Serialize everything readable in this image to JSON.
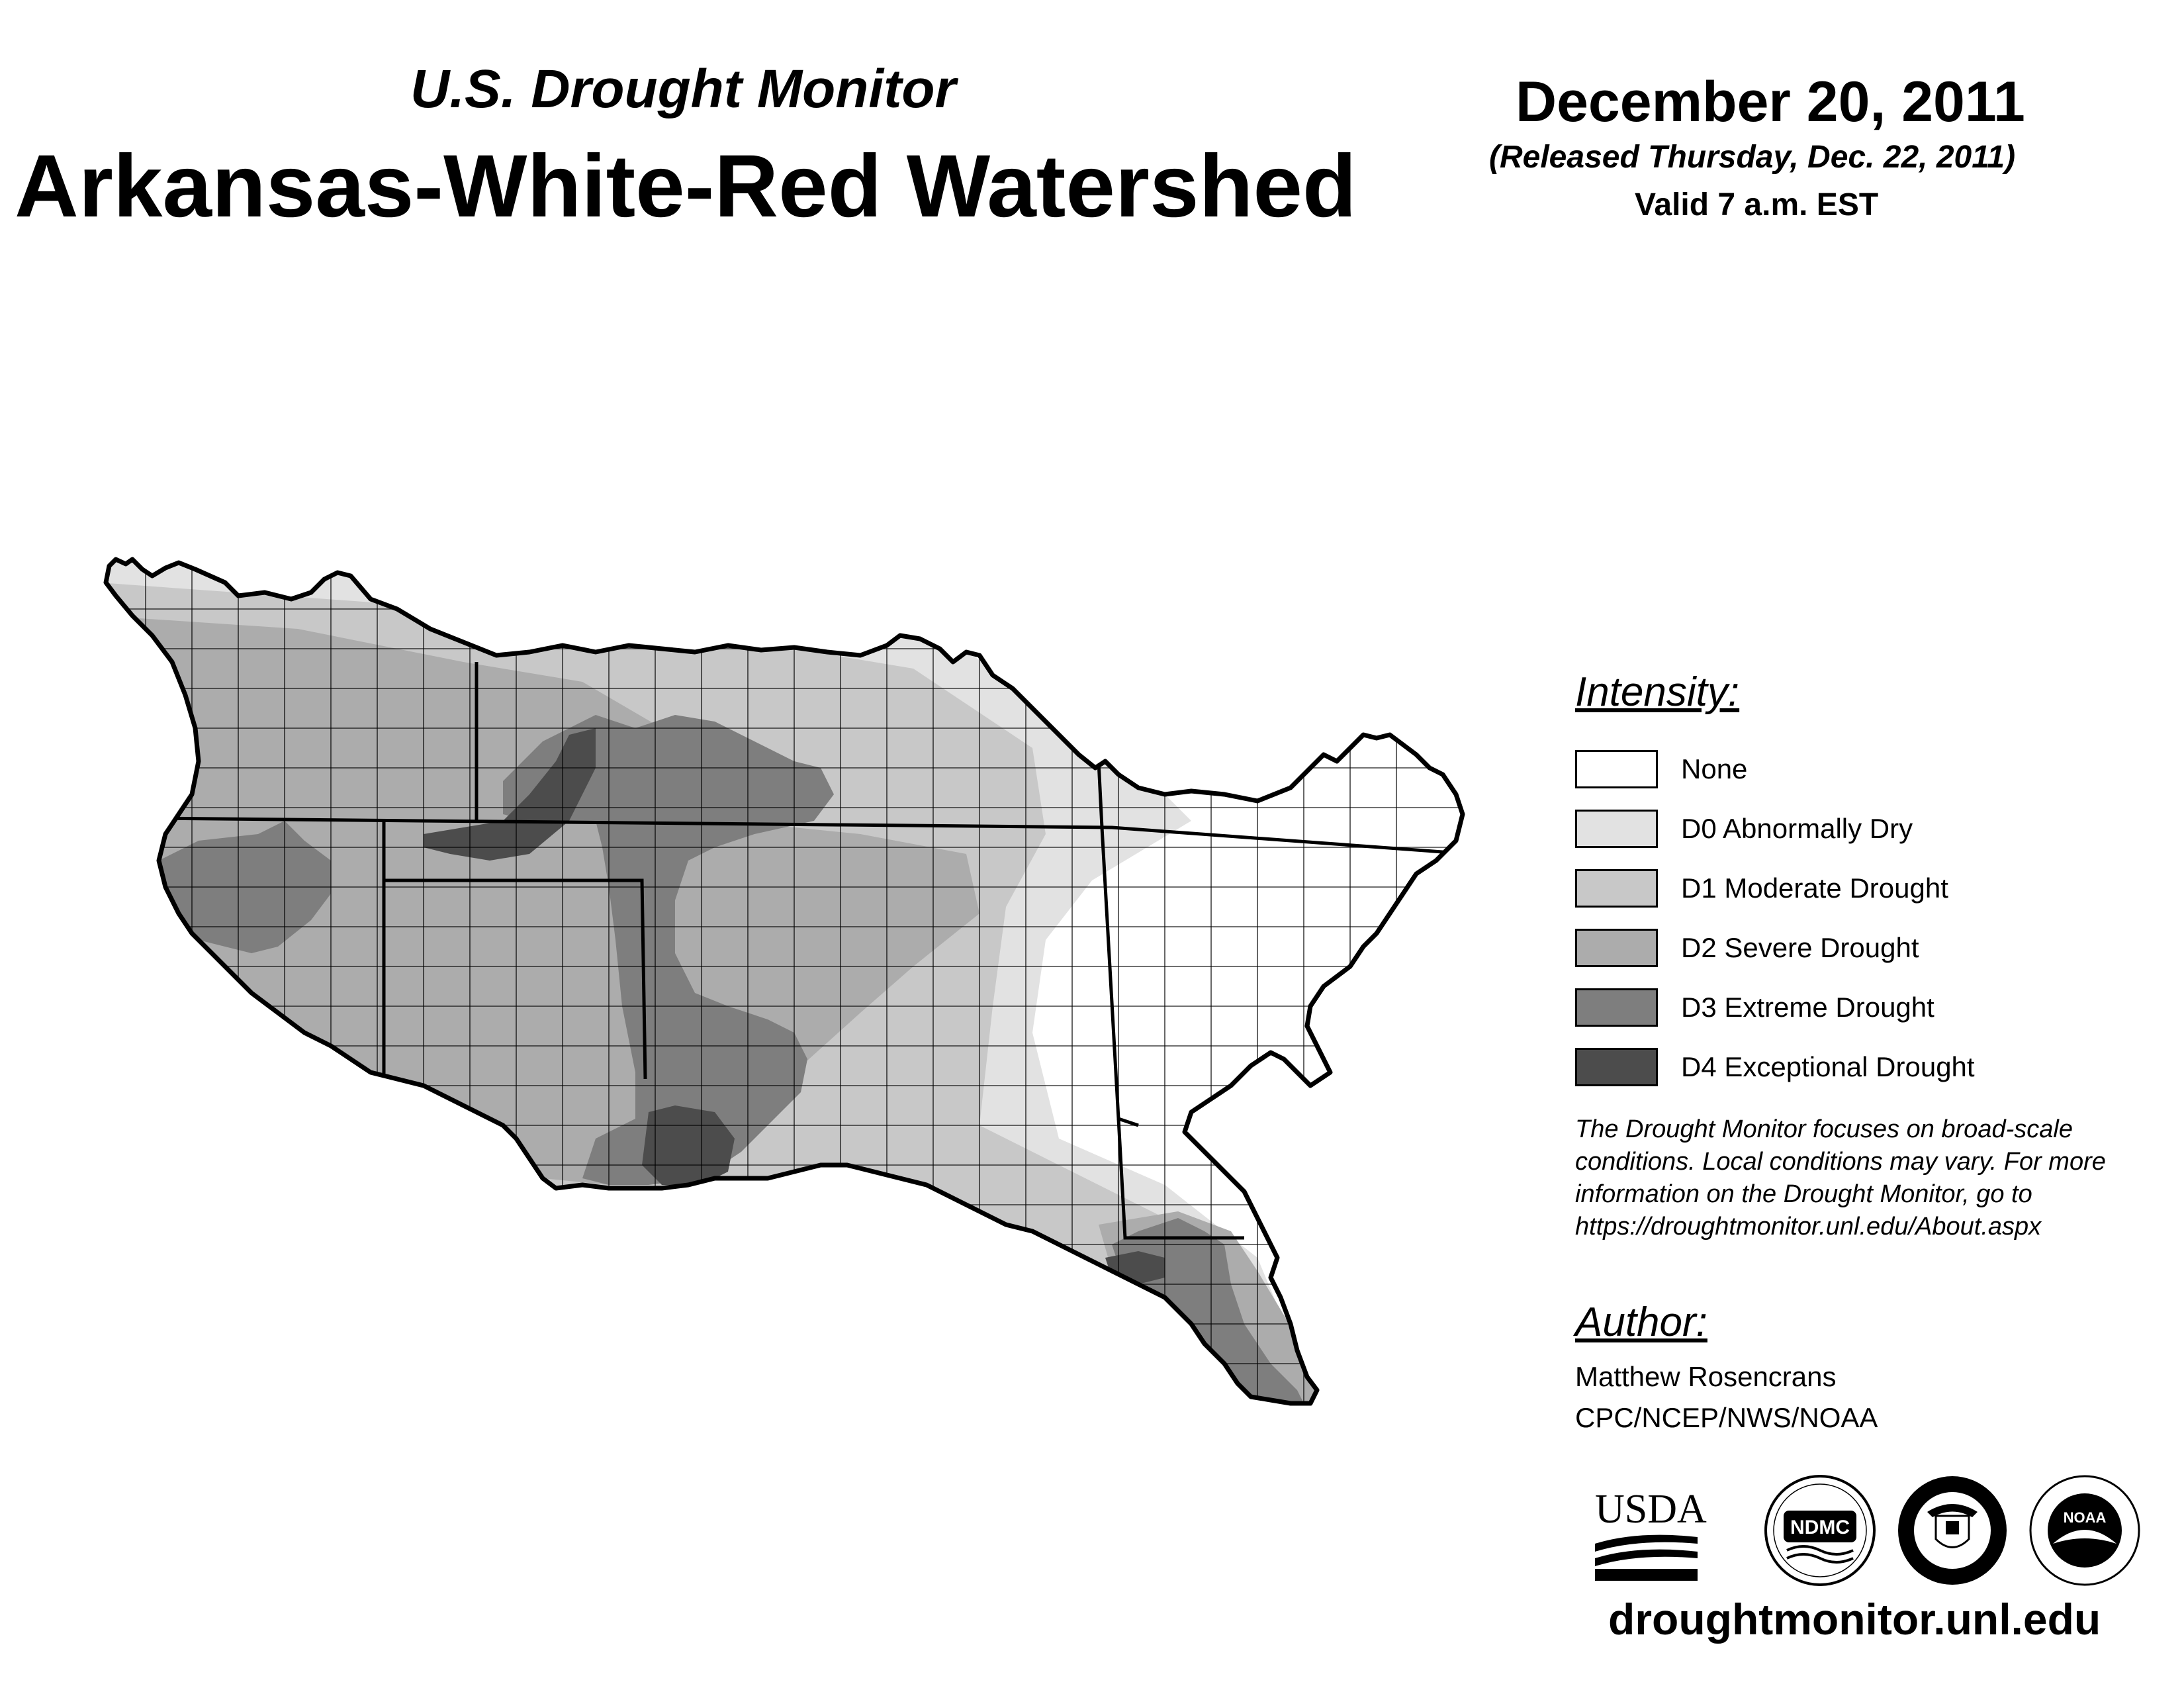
{
  "header": {
    "subtitle": "U.S. Drought Monitor",
    "title": "Arkansas-White-Red Watershed",
    "date": "December 20, 2011",
    "released": "(Released Thursday, Dec. 22, 2011)",
    "valid": "Valid 7 a.m. EST"
  },
  "legend": {
    "heading": "Intensity:",
    "items": [
      {
        "label": "None",
        "color": "#ffffff"
      },
      {
        "label": "D0 Abnormally Dry",
        "color": "#e2e2e2"
      },
      {
        "label": "D1 Moderate Drought",
        "color": "#c8c8c8"
      },
      {
        "label": "D2 Severe Drought",
        "color": "#acacac"
      },
      {
        "label": "D3 Extreme Drought",
        "color": "#7e7e7e"
      },
      {
        "label": "D4 Exceptional Drought",
        "color": "#4c4c4c"
      }
    ]
  },
  "disclaimer": {
    "lines": [
      "The Drought Monitor focuses on broad-scale",
      "conditions. Local conditions may vary. For more",
      "information on the Drought Monitor, go to",
      "https://droughtmonitor.unl.edu/About.aspx"
    ]
  },
  "author": {
    "heading": "Author:",
    "name": "Matthew Rosencrans",
    "org": "CPC/NCEP/NWS/NOAA"
  },
  "logos": {
    "usda": "USDA",
    "ndmc": "NDMC",
    "doc": "department-of-commerce-seal",
    "noaa": "NOAA"
  },
  "footer": {
    "website": "droughtmonitor.unl.edu"
  }
}
